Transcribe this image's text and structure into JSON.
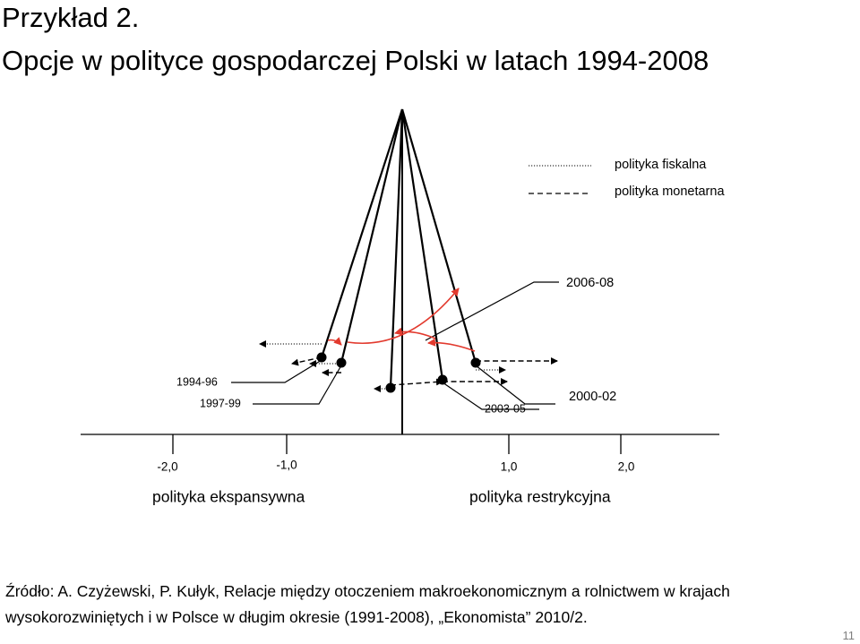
{
  "title": {
    "line1": "Przykład 2.",
    "line2": "Opcje w polityce gospodarczej Polski w latach 1994-2008"
  },
  "legend": {
    "fiscal": "polityka fiskalna",
    "monetary": "polityka monetarna"
  },
  "periods": {
    "p1994": "1994-96",
    "p1997": "1997-99",
    "p2000": "2000-02",
    "p2003": "2003-05",
    "p2006": "2006-08"
  },
  "axis": {
    "tick_m2": "-2,0",
    "tick_m1": "-1,0",
    "tick_p1": "1,0",
    "tick_p2": "2,0",
    "left_label": "polityka ekspansywna",
    "right_label": "polityka restrykcyjna"
  },
  "source": {
    "line1": "Źródło: A. Czyżewski, P. Kułyk, Relacje między otoczeniem makroekonomicznym a rolnictwem w krajach",
    "line2": "wysokorozwiniętych i w Polsce w długim okresie (1991-2008), „Ekonomista” 2010/2."
  },
  "slide_number": "11",
  "colors": {
    "arrow_red": "#e23a2e",
    "line": "#000000"
  }
}
